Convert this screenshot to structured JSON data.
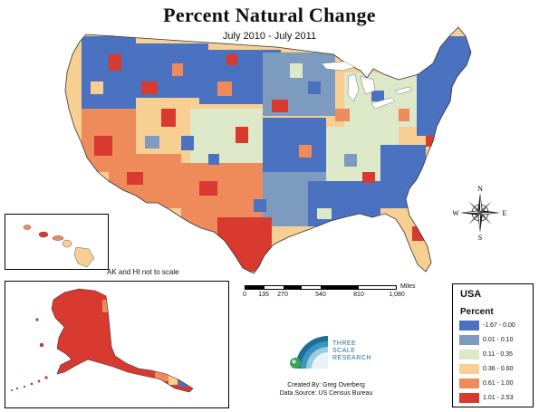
{
  "title": "Percent Natural Change",
  "subtitle": "July 2010 - July 2011",
  "inset_note": "AK and HI not to scale",
  "scale_bar": {
    "labels": [
      "0",
      "135",
      "270",
      "540",
      "810",
      "1,080"
    ],
    "unit": "Miles"
  },
  "legend": {
    "title": "USA",
    "subtitle": "Percent",
    "classes": [
      {
        "label": "-1.67 - 0.00",
        "color": "#4a72c0"
      },
      {
        "label": "0.01 - 0.10",
        "color": "#7d9bbf"
      },
      {
        "label": "0.11 - 0.35",
        "color": "#dde8c8"
      },
      {
        "label": "0.36 - 0.60",
        "color": "#f8cf93"
      },
      {
        "label": "0.61 - 1.00",
        "color": "#ef8a5a"
      },
      {
        "label": "1.01 - 2.53",
        "color": "#d93a30"
      }
    ]
  },
  "logo": {
    "line1": "THREE",
    "line2": "SCALE",
    "line3": "RESEARCH"
  },
  "credit": {
    "author": "Created By: Greg Overberg",
    "source": "Data Source: US Census Bureau"
  },
  "compass": {
    "n": "N",
    "s": "S",
    "e": "E",
    "w": "W"
  },
  "colors": {
    "lakes": "#ffffff",
    "outline": "#333333"
  }
}
